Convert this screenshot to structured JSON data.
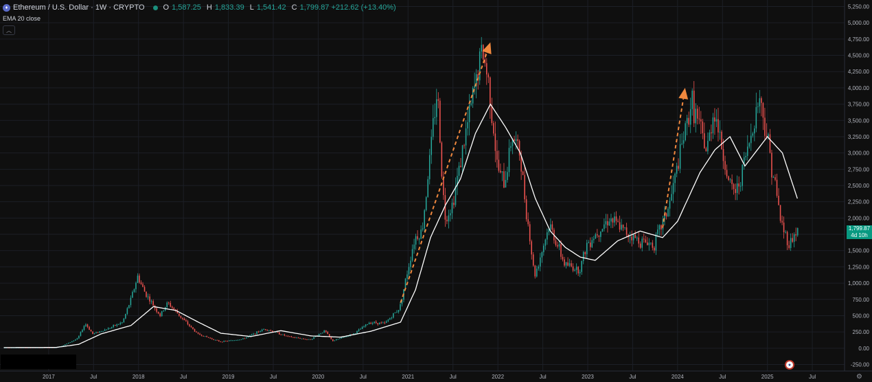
{
  "header": {
    "symbol_icon": "ethereum-icon",
    "title": "Ethereum / U.S. Dollar · 1W · CRYPTO",
    "o_label": "O",
    "o_value": "1,587.25",
    "h_label": "H",
    "h_value": "1,833.39",
    "l_label": "L",
    "l_value": "1,541.42",
    "c_label": "C",
    "c_value": "1,799.87 +212.62 (+13.40%)"
  },
  "indicator": {
    "label": "EMA 20 close"
  },
  "collapse_icon": "chevron-up-icon",
  "last_price": {
    "value": "1,799.87",
    "countdown": "4d 10h"
  },
  "colors": {
    "up": "#26a69a",
    "down": "#ef5350",
    "ema": "#ffffff",
    "arrow": "#f0883e",
    "background": "#0f0f0f"
  },
  "chart_data": {
    "type": "candlestick",
    "ylim": [
      -350,
      5350
    ],
    "y_ticks": [
      -250,
      0,
      250,
      500,
      750,
      1000,
      1250,
      1500,
      1750,
      2000,
      2250,
      2500,
      2750,
      3000,
      3250,
      3500,
      3750,
      4000,
      4250,
      4500,
      4750,
      5000,
      5250
    ],
    "y_tick_labels": [
      "-250.00",
      "0.00",
      "250.00",
      "500.00",
      "750.00",
      "1,000.00",
      "1,250.00",
      "1,500.00",
      "1,750.00",
      "2,000.00",
      "2,250.00",
      "2,500.00",
      "2,750.00",
      "3,000.00",
      "3,250.00",
      "3,500.00",
      "3,750.00",
      "4,000.00",
      "4,250.00",
      "4,500.00",
      "4,750.00",
      "5,000.00",
      "5,250.00"
    ],
    "x_ticks": [
      {
        "label": "2017",
        "date": "2017-01"
      },
      {
        "label": "Jul",
        "date": "2017-07"
      },
      {
        "label": "2018",
        "date": "2018-01"
      },
      {
        "label": "Jul",
        "date": "2018-07"
      },
      {
        "label": "2019",
        "date": "2019-01"
      },
      {
        "label": "Jul",
        "date": "2019-07"
      },
      {
        "label": "2020",
        "date": "2020-01"
      },
      {
        "label": "Jul",
        "date": "2020-07"
      },
      {
        "label": "2021",
        "date": "2021-01"
      },
      {
        "label": "Jul",
        "date": "2021-07"
      },
      {
        "label": "2022",
        "date": "2022-01"
      },
      {
        "label": "Jul",
        "date": "2022-07"
      },
      {
        "label": "2023",
        "date": "2023-01"
      },
      {
        "label": "Jul",
        "date": "2023-07"
      },
      {
        "label": "2024",
        "date": "2024-01"
      },
      {
        "label": "Jul",
        "date": "2024-07"
      },
      {
        "label": "2025",
        "date": "2025-01"
      },
      {
        "label": "Jul",
        "date": "2025-07"
      }
    ],
    "price_path": [
      [
        "2016-07",
        10
      ],
      [
        "2017-02",
        12
      ],
      [
        "2017-03",
        40
      ],
      [
        "2017-05",
        150
      ],
      [
        "2017-06",
        380
      ],
      [
        "2017-07",
        220
      ],
      [
        "2017-09",
        300
      ],
      [
        "2017-11",
        400
      ],
      [
        "2017-12",
        720
      ],
      [
        "2018-01",
        1100
      ],
      [
        "2018-02",
        850
      ],
      [
        "2018-04",
        500
      ],
      [
        "2018-05",
        700
      ],
      [
        "2018-07",
        450
      ],
      [
        "2018-09",
        220
      ],
      [
        "2018-12",
        100
      ],
      [
        "2019-03",
        140
      ],
      [
        "2019-06",
        300
      ],
      [
        "2019-09",
        180
      ],
      [
        "2019-12",
        130
      ],
      [
        "2020-02",
        270
      ],
      [
        "2020-03",
        110
      ],
      [
        "2020-06",
        230
      ],
      [
        "2020-08",
        400
      ],
      [
        "2020-10",
        380
      ],
      [
        "2020-12",
        620
      ],
      [
        "2021-02",
        1700
      ],
      [
        "2021-03",
        1800
      ],
      [
        "2021-05",
        4000
      ],
      [
        "2021-06",
        2000
      ],
      [
        "2021-07",
        2200
      ],
      [
        "2021-09",
        3400
      ],
      [
        "2021-11",
        4600
      ],
      [
        "2021-12",
        4000
      ],
      [
        "2022-01",
        2800
      ],
      [
        "2022-02",
        2500
      ],
      [
        "2022-03",
        3300
      ],
      [
        "2022-04",
        3000
      ],
      [
        "2022-06",
        1100
      ],
      [
        "2022-07",
        1500
      ],
      [
        "2022-08",
        1900
      ],
      [
        "2022-10",
        1300
      ],
      [
        "2022-12",
        1200
      ],
      [
        "2023-01",
        1600
      ],
      [
        "2023-04",
        2000
      ],
      [
        "2023-06",
        1800
      ],
      [
        "2023-08",
        1650
      ],
      [
        "2023-10",
        1600
      ],
      [
        "2023-12",
        2200
      ],
      [
        "2024-03",
        3800
      ],
      [
        "2024-05",
        3000
      ],
      [
        "2024-06",
        3700
      ],
      [
        "2024-08",
        2500
      ],
      [
        "2024-09",
        2400
      ],
      [
        "2024-11",
        3300
      ],
      [
        "2024-12",
        3900
      ],
      [
        "2025-01",
        3300
      ],
      [
        "2025-02",
        2600
      ],
      [
        "2025-03",
        1900
      ],
      [
        "2025-04",
        1600
      ],
      [
        "2025-05",
        1800
      ]
    ],
    "ema_path": [
      [
        "2016-07",
        10
      ],
      [
        "2017-02",
        12
      ],
      [
        "2017-05",
        60
      ],
      [
        "2017-08",
        220
      ],
      [
        "2017-12",
        350
      ],
      [
        "2018-03",
        640
      ],
      [
        "2018-06",
        580
      ],
      [
        "2018-09",
        400
      ],
      [
        "2018-12",
        230
      ],
      [
        "2019-04",
        180
      ],
      [
        "2019-08",
        270
      ],
      [
        "2019-12",
        190
      ],
      [
        "2020-04",
        170
      ],
      [
        "2020-08",
        260
      ],
      [
        "2020-12",
        400
      ],
      [
        "2021-02",
        900
      ],
      [
        "2021-04",
        1700
      ],
      [
        "2021-06",
        2200
      ],
      [
        "2021-08",
        2600
      ],
      [
        "2021-10",
        3300
      ],
      [
        "2021-12",
        3750
      ],
      [
        "2022-02",
        3400
      ],
      [
        "2022-04",
        3000
      ],
      [
        "2022-06",
        2300
      ],
      [
        "2022-08",
        1800
      ],
      [
        "2022-10",
        1550
      ],
      [
        "2022-12",
        1400
      ],
      [
        "2023-02",
        1350
      ],
      [
        "2023-05",
        1650
      ],
      [
        "2023-08",
        1800
      ],
      [
        "2023-11",
        1700
      ],
      [
        "2024-01",
        1950
      ],
      [
        "2024-04",
        2700
      ],
      [
        "2024-06",
        3050
      ],
      [
        "2024-08",
        3250
      ],
      [
        "2024-10",
        2800
      ],
      [
        "2024-12",
        3100
      ],
      [
        "2025-01",
        3250
      ],
      [
        "2025-03",
        3000
      ],
      [
        "2025-05",
        2300
      ]
    ],
    "annotations": [
      {
        "type": "dashed-arrow",
        "from": [
          "2020-12",
          700
        ],
        "to": [
          "2021-12",
          4700
        ]
      },
      {
        "type": "dashed-arrow",
        "from": [
          "2023-11",
          1850
        ],
        "to": [
          "2024-02",
          4000
        ]
      }
    ]
  },
  "status_icons": {
    "flag": "us-flag-icon",
    "settings": "gear-icon"
  }
}
